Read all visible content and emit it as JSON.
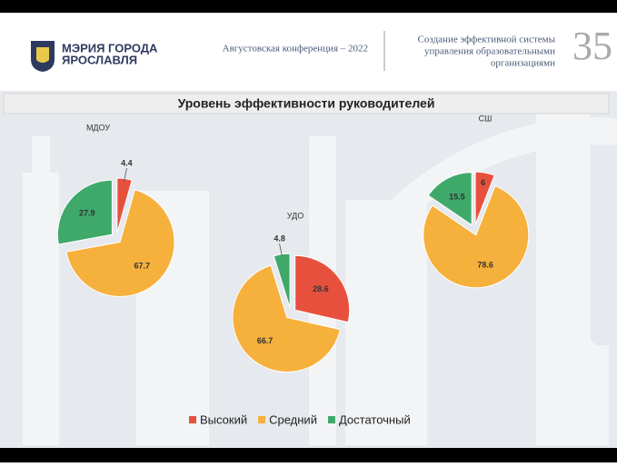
{
  "header": {
    "logo_line1": "МЭРИЯ ГОРОДА",
    "logo_line2": "ЯРОСЛАВЛЯ",
    "conference": "Августовская конференция – 2022",
    "topic_line1": "Создание эффективной системы",
    "topic_line2": "управления образовательными",
    "topic_line3": "организациями",
    "page_number": "35"
  },
  "title": "Уровень эффективности руководителей",
  "legend": {
    "categories": [
      "Высокий",
      "Средний",
      "Достаточный"
    ],
    "colors": [
      "#e8503e",
      "#f6b03c",
      "#3fa96a"
    ]
  },
  "chart_data": [
    {
      "type": "pie",
      "title": "МДОУ",
      "values": [
        4.4,
        67.7,
        27.9
      ]
    },
    {
      "type": "pie",
      "title": "УДО",
      "values": [
        28.6,
        66.7,
        4.8
      ]
    },
    {
      "type": "pie",
      "title": "СШ",
      "values": [
        5.9,
        78.6,
        15.5
      ],
      "value_labels": [
        "6",
        "78.6",
        "15.5"
      ]
    }
  ]
}
